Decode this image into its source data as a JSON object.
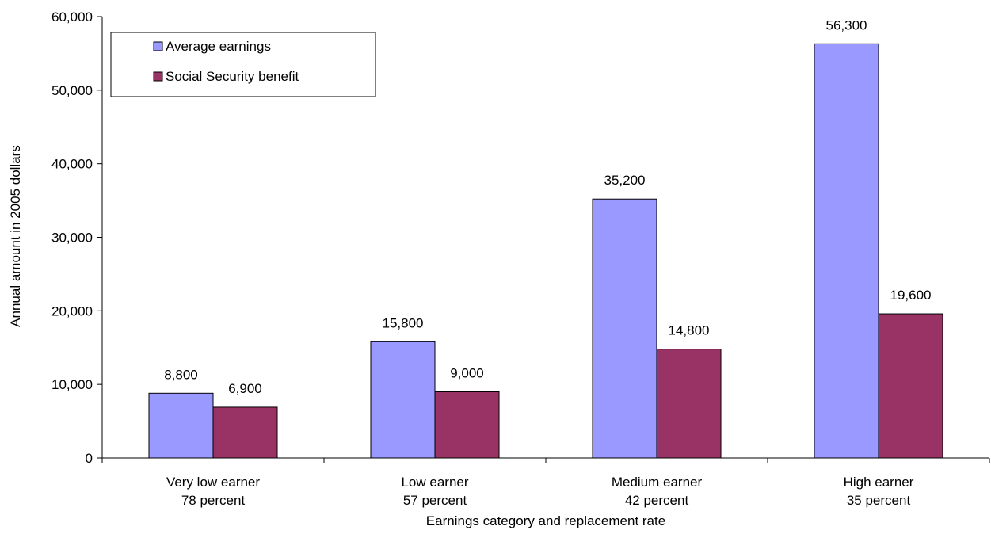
{
  "chart_data": {
    "type": "bar",
    "title": "",
    "xlabel": "Earnings category and replacement rate",
    "ylabel": "Annual amount in 2005 dollars",
    "ylim": [
      0,
      60000
    ],
    "yticks": [
      "0",
      "10,000",
      "20,000",
      "30,000",
      "40,000",
      "50,000",
      "60,000"
    ],
    "ytick_values": [
      0,
      10000,
      20000,
      30000,
      40000,
      50000,
      60000
    ],
    "grid": false,
    "legend_position": "top-left",
    "categories": [
      {
        "name": "Very low earner",
        "rate": "78 percent"
      },
      {
        "name": "Low earner",
        "rate": "57 percent"
      },
      {
        "name": "Medium earner",
        "rate": "42 percent"
      },
      {
        "name": "High earner",
        "rate": "35 percent"
      }
    ],
    "series": [
      {
        "name": "Average earnings",
        "color": "#9999ff",
        "values": [
          8800,
          15800,
          35200,
          56300
        ],
        "labels": [
          "8,800",
          "15,800",
          "35,200",
          "56,300"
        ]
      },
      {
        "name": "Social Security benefit",
        "color": "#993366",
        "values": [
          6900,
          9000,
          14800,
          19600
        ],
        "labels": [
          "6,900",
          "9,000",
          "14,800",
          "19,600"
        ]
      }
    ]
  }
}
